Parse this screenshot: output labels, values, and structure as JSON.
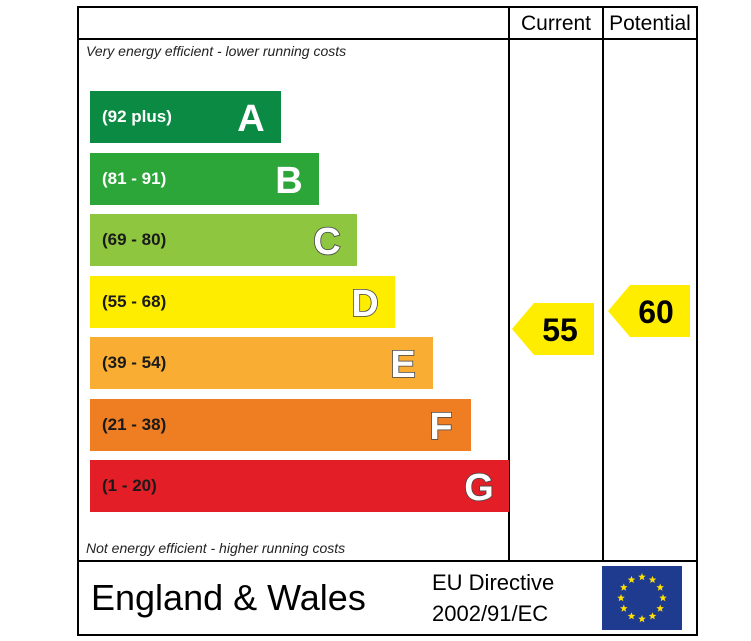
{
  "header": {
    "current_label": "Current",
    "potential_label": "Potential"
  },
  "notes": {
    "top": "Very energy efficient - lower running costs",
    "bottom": "Not energy efficient - higher running costs"
  },
  "chart_data": {
    "type": "bar",
    "bands": [
      {
        "letter": "A",
        "range": "(92 plus)",
        "color": "#0b8a43",
        "text_color": "#ffffff"
      },
      {
        "letter": "B",
        "range": "(81 - 91)",
        "color": "#2ca539",
        "text_color": "#ffffff"
      },
      {
        "letter": "C",
        "range": "(69 - 80)",
        "color": "#8ec63f",
        "text_color": "#1a1a1a"
      },
      {
        "letter": "D",
        "range": "(55 - 68)",
        "color": "#ffed00",
        "text_color": "#1a1a1a"
      },
      {
        "letter": "E",
        "range": "(39 - 54)",
        "color": "#f9ad32",
        "text_color": "#1a1a1a"
      },
      {
        "letter": "F",
        "range": "(21 - 38)",
        "color": "#ef7d22",
        "text_color": "#1a1a1a"
      },
      {
        "letter": "G",
        "range": "(1 - 20)",
        "color": "#e41e26",
        "text_color": "#1a1a1a"
      }
    ],
    "current": {
      "value": 55,
      "band": "D",
      "color": "#ffed00"
    },
    "potential": {
      "value": 60,
      "band": "D",
      "color": "#ffed00"
    }
  },
  "footer": {
    "region": "England & Wales",
    "directive_line1": "EU Directive",
    "directive_line2": "2002/91/EC",
    "flag_icon": "eu-flag-icon",
    "flag_color": "#1f3b8f",
    "star_color": "#ffe100"
  }
}
